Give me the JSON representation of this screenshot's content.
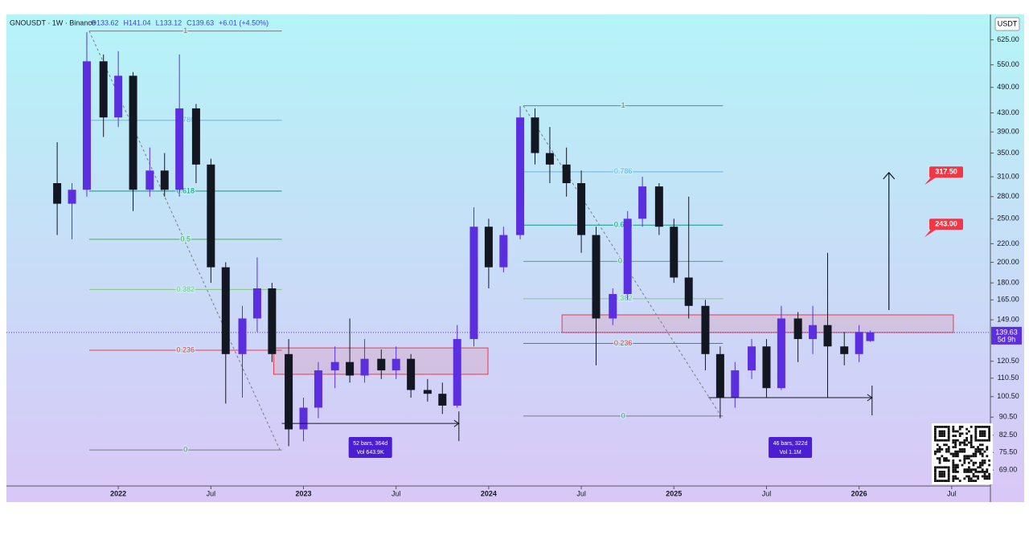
{
  "chart_data": {
    "type": "candlestick",
    "header": {
      "symbol": "GNOUSDT · 1W · Binance",
      "fields": [
        "O133.62",
        "H141.04",
        "L133.12",
        "C139.63",
        "+6.01 (+4.50%)"
      ]
    },
    "currency": "USDT",
    "log_scale": true,
    "up_color": "#5b2ee0",
    "down_color": "#131722",
    "x": [
      2021.67,
      2021.75,
      2021.83,
      2021.92,
      2022.0,
      2022.08,
      2022.17,
      2022.25,
      2022.33,
      2022.42,
      2022.5,
      2022.58,
      2022.67,
      2022.75,
      2022.83,
      2022.92,
      2023.0,
      2023.08,
      2023.17,
      2023.25,
      2023.33,
      2023.42,
      2023.5,
      2023.58,
      2023.67,
      2023.75,
      2023.83,
      2023.92,
      2024.0,
      2024.08,
      2024.17,
      2024.25,
      2024.33,
      2024.42,
      2024.5,
      2024.58,
      2024.67,
      2024.75,
      2024.83,
      2024.92,
      2025.0,
      2025.08,
      2025.17,
      2025.25,
      2025.33,
      2025.42,
      2025.5,
      2025.58,
      2025.67,
      2025.75,
      2025.83,
      2025.92,
      2026.0,
      2026.06
    ],
    "open": [
      300,
      270,
      290,
      560,
      420,
      520,
      290,
      320,
      290,
      440,
      330,
      195,
      125,
      150,
      175,
      125,
      85,
      95,
      115,
      120,
      112,
      122,
      115,
      122,
      104,
      102,
      96,
      135,
      240,
      195,
      230,
      420,
      350,
      330,
      300,
      230,
      150,
      170,
      250,
      295,
      240,
      185,
      160,
      125,
      100,
      115,
      130,
      105,
      150,
      135,
      145,
      130,
      125,
      133.62
    ],
    "high": [
      370,
      300,
      650,
      580,
      590,
      530,
      360,
      350,
      580,
      450,
      340,
      200,
      160,
      205,
      180,
      135,
      100,
      120,
      130,
      150,
      135,
      128,
      130,
      125,
      110,
      108,
      145,
      265,
      250,
      240,
      445,
      440,
      400,
      360,
      320,
      240,
      175,
      260,
      310,
      300,
      250,
      280,
      165,
      130,
      120,
      135,
      135,
      160,
      155,
      160,
      210,
      140,
      145,
      141.04
    ],
    "low": [
      230,
      225,
      280,
      380,
      400,
      260,
      280,
      280,
      280,
      300,
      180,
      97,
      100,
      140,
      120,
      78,
      80,
      90,
      105,
      108,
      108,
      110,
      110,
      100,
      98,
      92,
      95,
      130,
      175,
      190,
      225,
      330,
      300,
      280,
      210,
      118,
      145,
      165,
      240,
      230,
      180,
      150,
      115,
      90,
      95,
      110,
      100,
      104,
      120,
      125,
      100,
      118,
      120,
      133.12
    ],
    "close": [
      270,
      290,
      560,
      420,
      520,
      290,
      320,
      290,
      440,
      330,
      195,
      125,
      150,
      175,
      125,
      85,
      95,
      115,
      120,
      112,
      122,
      115,
      122,
      104,
      102,
      96,
      135,
      240,
      195,
      230,
      420,
      350,
      330,
      300,
      230,
      150,
      170,
      250,
      295,
      240,
      185,
      160,
      125,
      100,
      115,
      130,
      105,
      150,
      135,
      145,
      130,
      125,
      140,
      139.63
    ],
    "xlim": [
      2021.396,
      2026.709
    ],
    "ylim": [
      63.6,
      706
    ],
    "xticks": [
      {
        "value": 2022,
        "label": "2022"
      },
      {
        "value": 2022.5,
        "label": "Jul"
      },
      {
        "value": 2023,
        "label": "2023"
      },
      {
        "value": 2023.5,
        "label": "Jul"
      },
      {
        "value": 2024,
        "label": "2024"
      },
      {
        "value": 2024.5,
        "label": "Jul"
      },
      {
        "value": 2025,
        "label": "2025"
      },
      {
        "value": 2025.5,
        "label": "Jul"
      },
      {
        "value": 2026,
        "label": "2026"
      },
      {
        "value": 2026.5,
        "label": "Jul"
      }
    ],
    "yticks": [
      {
        "value": 625,
        "label": "625.00"
      },
      {
        "value": 550,
        "label": "550.00"
      },
      {
        "value": 490,
        "label": "490.00"
      },
      {
        "value": 430,
        "label": "430.00"
      },
      {
        "value": 390,
        "label": "390.00"
      },
      {
        "value": 350,
        "label": "350.00"
      },
      {
        "value": 310,
        "label": "310.00"
      },
      {
        "value": 280,
        "label": "280.00"
      },
      {
        "value": 250,
        "label": "250.00"
      },
      {
        "value": 220,
        "label": "220.00"
      },
      {
        "value": 200,
        "label": "200.00"
      },
      {
        "value": 180,
        "label": "180.00"
      },
      {
        "value": 165,
        "label": "165.00"
      },
      {
        "value": 149,
        "label": "149.00"
      },
      {
        "value": 120.5,
        "label": "120.50"
      },
      {
        "value": 110.5,
        "label": "110.50"
      },
      {
        "value": 100.5,
        "label": "100.50"
      },
      {
        "value": 90.5,
        "label": "90.50"
      },
      {
        "value": 82.5,
        "label": "82.50"
      },
      {
        "value": 75.5,
        "label": "75.50"
      },
      {
        "value": 69,
        "label": "69.00"
      }
    ],
    "last_price": {
      "value": 139.63,
      "label": "139.63",
      "countdown": "5d 9h"
    },
    "fibs": [
      {
        "x": [
          2021.843,
          2022.883
        ],
        "levels": [
          {
            "label": "1",
            "price": 654,
            "color": "#787b86"
          },
          {
            "label": "0.786",
            "price": 414,
            "color": "#64b5f6"
          },
          {
            "label": "0.618",
            "price": 288,
            "color": "#089981"
          },
          {
            "label": "0.5",
            "price": 225,
            "color": "#4caf50"
          },
          {
            "label": "0.382",
            "price": 174,
            "color": "#81c784"
          },
          {
            "label": "0.236",
            "price": 127.5,
            "color": "#f23645"
          },
          {
            "label": "0",
            "price": 76.5,
            "color": "#787b86"
          }
        ]
      },
      {
        "x": [
          2024.187,
          2025.265
        ],
        "levels": [
          {
            "label": "1",
            "price": 446,
            "color": "#787b86"
          },
          {
            "label": "0.786",
            "price": 318,
            "color": "#64b5f6"
          },
          {
            "label": "0.618",
            "price": 242,
            "color": "#089981"
          },
          {
            "label": "0.5",
            "price": 201,
            "color": "#4caf50"
          },
          {
            "label": "0.382",
            "price": 166,
            "color": "#81c784"
          },
          {
            "label": "0.236",
            "price": 132,
            "color": "#f23645"
          },
          {
            "label": "0",
            "price": 91,
            "color": "#787b86"
          }
        ]
      }
    ],
    "zones": [
      {
        "x": [
          2022.839,
          2023.996
        ],
        "price": [
          112.7,
          129
        ]
      },
      {
        "x": [
          2024.396,
          2026.509
        ],
        "price": [
          139.6,
          152.8
        ]
      }
    ],
    "targets": [
      {
        "value": 317.5,
        "label": "317.50"
      },
      {
        "value": 243,
        "label": "243.00"
      }
    ],
    "arrow": {
      "x": 2026.161,
      "price": [
        156.6,
        316.7
      ]
    },
    "measures": [
      {
        "x": [
          2022.883,
          2023.839
        ],
        "price": 87.6,
        "texts": [
          "52 bars, 364d",
          "Vol 643.9K"
        ]
      },
      {
        "x": [
          2025.187,
          2026.07
        ],
        "price": 100,
        "texts": [
          "46 bars, 322d",
          "Vol 1.1M"
        ]
      }
    ]
  }
}
